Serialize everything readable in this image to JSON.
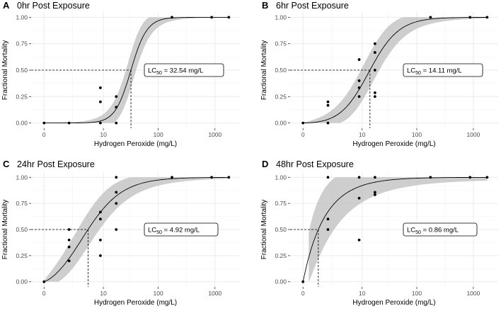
{
  "figure": {
    "background": "#ffffff",
    "grid_color": "#ebebeb",
    "band_color": "#bdbdbd",
    "point_color": "#000000"
  },
  "chart_data": [
    {
      "type": "scatter",
      "letter": "A",
      "title": "0hr Post Exposure",
      "xlabel": "Hydrogen Peroxide (mg/L)",
      "ylabel": "Fractional Mortality",
      "x_scale": "pseudo-log",
      "x_ticks": [
        "0",
        "10",
        "100",
        "1000"
      ],
      "y_ticks": [
        "0.00",
        "0.25",
        "0.50",
        "0.75",
        "1.00"
      ],
      "ylim": [
        0,
        1
      ],
      "grid": true,
      "points": [
        {
          "x": 0,
          "y": 0
        },
        {
          "x": 1.75,
          "y": 0
        },
        {
          "x": 8.75,
          "y": 0
        },
        {
          "x": 8.75,
          "y": 0.2
        },
        {
          "x": 8.75,
          "y": 0.333
        },
        {
          "x": 17.5,
          "y": 0
        },
        {
          "x": 17.5,
          "y": 0.15
        },
        {
          "x": 17.5,
          "y": 0.25
        },
        {
          "x": 175,
          "y": 1
        },
        {
          "x": 875,
          "y": 1
        },
        {
          "x": 1750,
          "y": 1
        }
      ],
      "fit": {
        "model": "log-logistic",
        "lc50": 32.54,
        "slope": 3.0
      },
      "confidence_band": true,
      "lc50_label": {
        "prefix": "LC",
        "sub": "50",
        "suffix": " = 32.54 mg/L"
      }
    },
    {
      "type": "scatter",
      "letter": "B",
      "title": "6hr Post Exposure",
      "xlabel": "Hydrogen Peroxide (mg/L)",
      "ylabel": "Fractional Mortality",
      "x_scale": "pseudo-log",
      "x_ticks": [
        "0",
        "10",
        "100",
        "1000"
      ],
      "y_ticks": [
        "0.00",
        "0.25",
        "0.50",
        "0.75",
        "1.00"
      ],
      "ylim": [
        0,
        1
      ],
      "grid": true,
      "points": [
        {
          "x": 0,
          "y": 0
        },
        {
          "x": 1.75,
          "y": 0
        },
        {
          "x": 1.75,
          "y": 0.167
        },
        {
          "x": 1.75,
          "y": 0.2
        },
        {
          "x": 8.75,
          "y": 0.25
        },
        {
          "x": 8.75,
          "y": 0.333
        },
        {
          "x": 8.75,
          "y": 0.4
        },
        {
          "x": 8.75,
          "y": 0.6
        },
        {
          "x": 17.5,
          "y": 0.25
        },
        {
          "x": 17.5,
          "y": 0.286
        },
        {
          "x": 17.5,
          "y": 0.5
        },
        {
          "x": 17.5,
          "y": 0.667
        },
        {
          "x": 17.5,
          "y": 0.75
        },
        {
          "x": 175,
          "y": 1
        },
        {
          "x": 875,
          "y": 1
        },
        {
          "x": 1750,
          "y": 1
        }
      ],
      "fit": {
        "model": "log-logistic",
        "lc50": 14.11,
        "slope": 1.6
      },
      "confidence_band": true,
      "lc50_label": {
        "prefix": "LC",
        "sub": "50",
        "suffix": " = 14.11 mg/L"
      }
    },
    {
      "type": "scatter",
      "letter": "C",
      "title": "24hr Post Exposure",
      "xlabel": "Hydrogen Peroxide (mg/L)",
      "ylabel": "Fractional Mortality",
      "x_scale": "pseudo-log",
      "x_ticks": [
        "0",
        "10",
        "100",
        "1000"
      ],
      "y_ticks": [
        "0.00",
        "0.25",
        "0.50",
        "0.75",
        "1.00"
      ],
      "ylim": [
        0,
        1
      ],
      "grid": true,
      "points": [
        {
          "x": 0,
          "y": 0
        },
        {
          "x": 1.75,
          "y": 0.2
        },
        {
          "x": 1.75,
          "y": 0.333
        },
        {
          "x": 1.75,
          "y": 0.4
        },
        {
          "x": 1.75,
          "y": 0.5
        },
        {
          "x": 8.75,
          "y": 0.25
        },
        {
          "x": 8.75,
          "y": 0.4
        },
        {
          "x": 8.75,
          "y": 0.6
        },
        {
          "x": 8.75,
          "y": 0.667
        },
        {
          "x": 17.5,
          "y": 0.5
        },
        {
          "x": 17.5,
          "y": 0.75
        },
        {
          "x": 17.5,
          "y": 0.857
        },
        {
          "x": 17.5,
          "y": 1
        },
        {
          "x": 175,
          "y": 1
        },
        {
          "x": 875,
          "y": 1
        },
        {
          "x": 1750,
          "y": 1
        }
      ],
      "fit": {
        "model": "log-logistic",
        "lc50": 4.92,
        "slope": 1.2
      },
      "confidence_band": true,
      "lc50_label": {
        "prefix": "LC",
        "sub": "50",
        "suffix": " = 4.92 mg/L"
      }
    },
    {
      "type": "scatter",
      "letter": "D",
      "title": "48hr Post Exposure",
      "xlabel": "Hydrogen Peroxide (mg/L)",
      "ylabel": "Fractional Mortality",
      "x_scale": "pseudo-log",
      "x_ticks": [
        "0",
        "10",
        "100",
        "1000"
      ],
      "y_ticks": [
        "0.00",
        "0.25",
        "0.50",
        "0.75",
        "1.00"
      ],
      "ylim": [
        0,
        1
      ],
      "grid": true,
      "points": [
        {
          "x": 0,
          "y": 0
        },
        {
          "x": 1.75,
          "y": 0.5
        },
        {
          "x": 1.75,
          "y": 0.6
        },
        {
          "x": 1.75,
          "y": 1
        },
        {
          "x": 8.75,
          "y": 0.4
        },
        {
          "x": 8.75,
          "y": 0.8
        },
        {
          "x": 8.75,
          "y": 1
        },
        {
          "x": 17.5,
          "y": 0.833
        },
        {
          "x": 17.5,
          "y": 0.857
        },
        {
          "x": 17.5,
          "y": 1
        },
        {
          "x": 175,
          "y": 1
        },
        {
          "x": 875,
          "y": 1
        },
        {
          "x": 1750,
          "y": 1
        }
      ],
      "fit": {
        "model": "log-logistic",
        "lc50": 0.86,
        "slope": 1.0
      },
      "confidence_band": true,
      "lc50_label": {
        "prefix": "LC",
        "sub": "50",
        "suffix": " = 0.86 mg/L"
      }
    }
  ]
}
